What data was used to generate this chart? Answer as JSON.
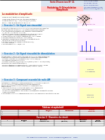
{
  "bg_color": "#f5f5f0",
  "page_bg": "#ffffff",
  "header": {
    "title": "Serie D Exercices N 11",
    "sub1": "Modulation Et Demodulation",
    "sub2": "D Amplitude",
    "right_lines": [
      "Lycee: Chtouka Ait Baha",
      "Prof: PR JENKAL RACHID",
      "Niveau: 2BAC BIOF SM PC",
      "Site: www.chtoukaphysique.com",
      "Email: prjenkalrachid@gmail.com"
    ],
    "title_color": "#c00000",
    "sub_bg": "#ffcccc",
    "right_bg": "#dce6f1",
    "center_bg": "#dce6f1",
    "border_color": "#4472c4"
  },
  "section_bg": "#ffe0b2",
  "section_title": "La modulation d amplitude:",
  "section_title_color": "#c00000",
  "exo_header_bg": "#dce6f1",
  "exo_header_color": "#0070c0",
  "exo1_title": "Exercice 1 : Un Signal non sinusoidal",
  "exo2_title": "Exercice 2 : Un Signal sinusoidal de demodulation",
  "exo3_title": "Exercice 3 : Composant essentiel de radio AM",
  "diagram_border": "#ff00ff",
  "diagram_bg": "#fff0ff",
  "diagram2_border": "#ff00ff",
  "diagram3_border": "#ff00ff",
  "table_border": "#c00000",
  "footer_bg": "#dce6f1",
  "footer_color": "#000080",
  "footer_text": "Site : www.chtoukaphysique.com      E-mail : prjenkalrachid@gmail.com      Page 1",
  "text_color": "#111111",
  "line_color": "#333333"
}
